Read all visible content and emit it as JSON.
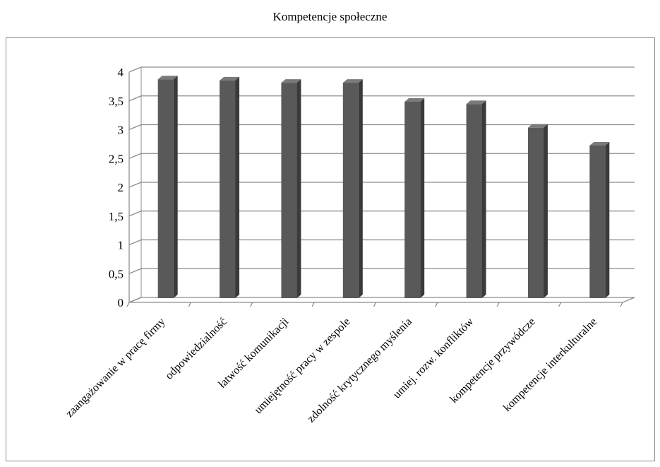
{
  "chart_data": {
    "type": "bar",
    "title": "Kompetencje społeczne",
    "xlabel": "",
    "ylabel": "",
    "categories": [
      "zaangażowanie w pracę firmy",
      "odpowiedzialność",
      "łatwość komunikacji",
      "umiejętność pracy w zespole",
      "zdolność krytycznego myślenia",
      "umiej. rozw. konfliktów",
      "kompetencje przywódcze",
      "kompetencje interkulturalne"
    ],
    "values": [
      3.85,
      3.83,
      3.79,
      3.79,
      3.46,
      3.42,
      3.01,
      2.7
    ],
    "ylim": [
      0,
      4
    ],
    "yticks": [
      "0",
      "0,5",
      "1",
      "1,5",
      "2",
      "2,5",
      "3",
      "3,5",
      "4"
    ],
    "grid": true,
    "legend": "none",
    "colors": {
      "bar_front": "#595959",
      "bar_side": "#3a3a3a",
      "bar_top": "#7a7a7a",
      "grid": "#8c8c8c",
      "axis": "#8c8c8c"
    }
  }
}
